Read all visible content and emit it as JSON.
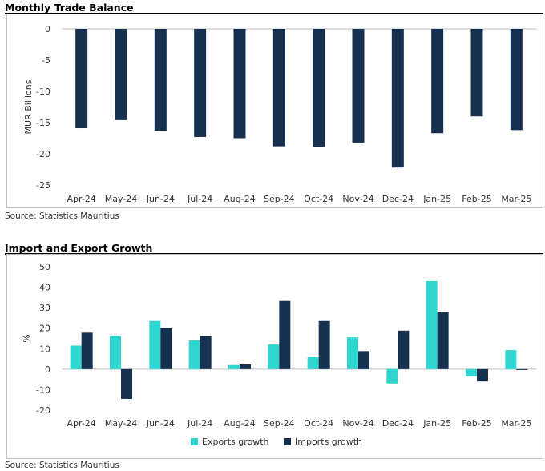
{
  "chart1": {
    "title": "Monthly Trade Balance",
    "source": "Source: Statistics Mauritius"
  },
  "chart2": {
    "title": "Import and Export Growth",
    "source": "Source: Statistics Mauritius"
  },
  "colors": {
    "exports": "#2fd6cf",
    "imports": "#16304f"
  },
  "chart_data": [
    {
      "type": "bar",
      "title": "Monthly Trade Balance",
      "ylabel": "MUR Billions",
      "xlabel": "",
      "ylim": [
        -25,
        0
      ],
      "yticks": [
        0,
        -5,
        -10,
        -15,
        -20,
        -25
      ],
      "grid": false,
      "categories": [
        "Apr-24",
        "May-24",
        "Jun-24",
        "Jul-24",
        "Aug-24",
        "Sep-24",
        "Oct-24",
        "Nov-24",
        "Dec-24",
        "Jan-25",
        "Feb-25",
        "Mar-25"
      ],
      "values": [
        -15.9,
        -14.6,
        -16.3,
        -17.3,
        -17.5,
        -18.8,
        -18.9,
        -18.2,
        -22.2,
        -16.7,
        -14.0,
        -16.2
      ]
    },
    {
      "type": "bar",
      "title": "Import and Export Growth",
      "ylabel": "%",
      "xlabel": "",
      "ylim": [
        -20,
        50
      ],
      "yticks": [
        50,
        40,
        30,
        20,
        10,
        0,
        -10,
        -20
      ],
      "grid": false,
      "legend": "bottom",
      "categories": [
        "Apr-24",
        "May-24",
        "Jun-24",
        "Jul-24",
        "Aug-24",
        "Sep-24",
        "Oct-24",
        "Nov-24",
        "Dec-24",
        "Jan-25",
        "Feb-25",
        "Mar-25"
      ],
      "series": [
        {
          "name": "Exports growth",
          "values": [
            11.5,
            16.3,
            23.5,
            14.0,
            2.0,
            12.0,
            5.8,
            15.5,
            -7.0,
            43.0,
            -3.5,
            9.3
          ]
        },
        {
          "name": "Imports growth",
          "values": [
            17.8,
            -14.5,
            20.0,
            16.2,
            2.3,
            33.3,
            23.5,
            8.8,
            18.8,
            27.7,
            -6.0,
            -0.4
          ]
        }
      ]
    }
  ]
}
